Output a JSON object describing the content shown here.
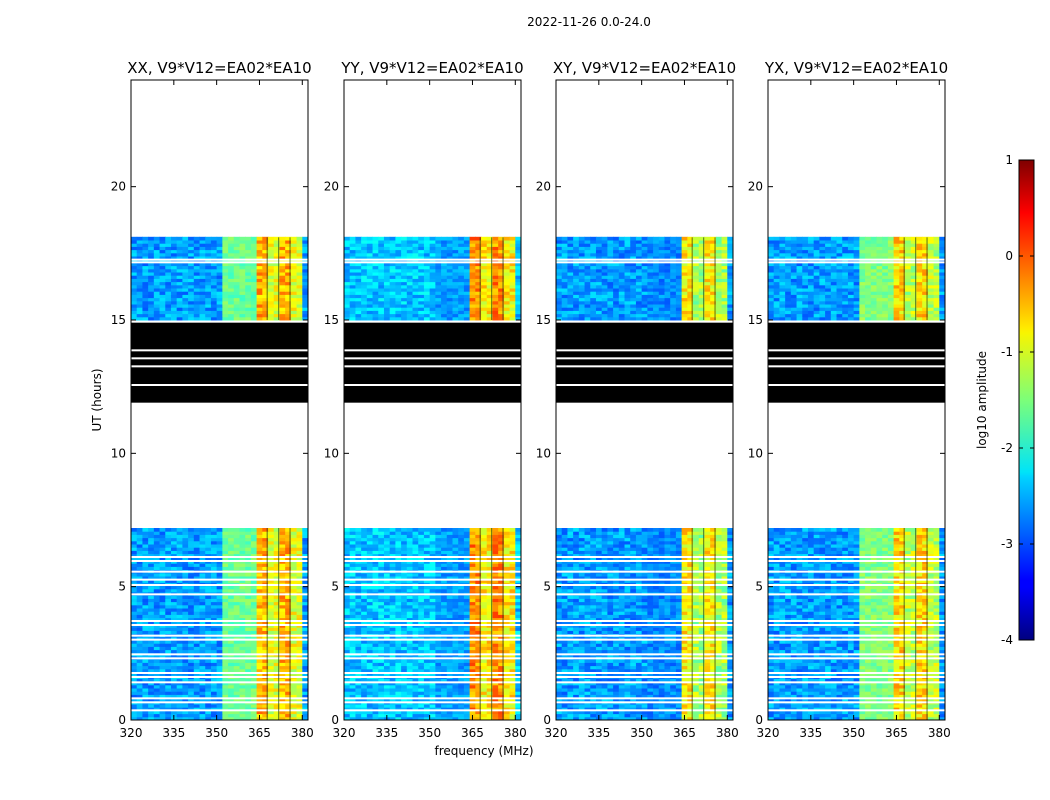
{
  "chart_data": {
    "type": "heatmap",
    "suptitle": "2022-11-26 0.0-24.0",
    "xlabel": "frequency (MHz)",
    "ylabel": "UT (hours)",
    "xlim": [
      320,
      382
    ],
    "ylim": [
      0,
      24
    ],
    "xticks": [
      320,
      335,
      350,
      365,
      380
    ],
    "yticks": [
      0,
      5,
      10,
      15,
      20
    ],
    "panels": [
      {
        "title": "XX, V9*V12=EA02*EA10",
        "rfi_band_level": -0.6,
        "mid_band_level": -1.6,
        "base_level": -2.6
      },
      {
        "title": "YY, V9*V12=EA02*EA10",
        "rfi_band_level": -0.4,
        "mid_band_level": -2.6,
        "base_level": -2.4
      },
      {
        "title": "XY, V9*V12=EA02*EA10",
        "rfi_band_level": -0.9,
        "mid_band_level": -2.7,
        "base_level": -2.6
      },
      {
        "title": "YX, V9*V12=EA02*EA10",
        "rfi_band_level": -0.8,
        "mid_band_level": -1.5,
        "base_level": -2.6
      }
    ],
    "data_time_ranges_hours": [
      [
        0.0,
        7.2
      ],
      [
        15.0,
        18.1
      ]
    ],
    "flagged_black_range_hours": [
      11.9,
      14.9
    ],
    "gap_lines_hours": [
      0.4,
      0.7,
      0.85,
      1.45,
      1.65,
      1.8,
      2.35,
      2.5,
      3.05,
      3.2,
      3.6,
      3.75,
      4.75,
      5.1,
      5.3,
      5.6,
      6.0,
      6.15,
      17.2,
      17.3
    ],
    "black_range_white_lines_hours": [
      13.3,
      13.6,
      13.9,
      12.6
    ],
    "rfi_channel_range_mhz": [
      363.5,
      379.5
    ],
    "colorbar": {
      "label": "log10 amplitude",
      "min": -4,
      "max": 1,
      "ticks": [
        1,
        0,
        -1,
        -2,
        -3,
        -4
      ],
      "colormap": "jet"
    }
  }
}
